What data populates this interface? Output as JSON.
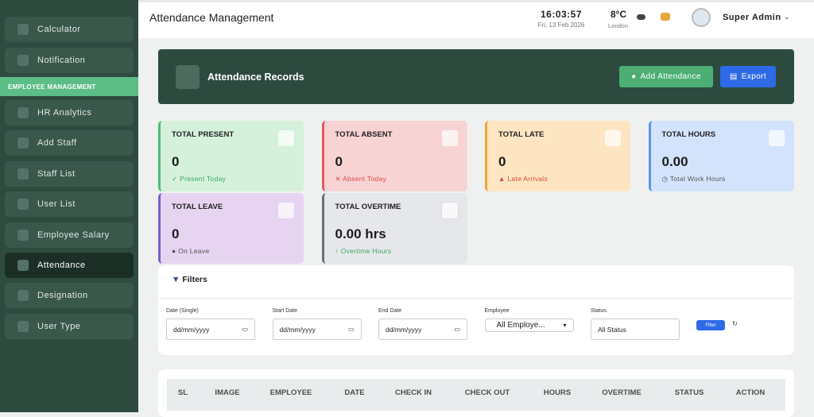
{
  "sidebar": {
    "items": [
      {
        "label": "Calculator"
      },
      {
        "label": "Notification"
      }
    ],
    "section": "EMPLOYEE MANAGEMENT",
    "section_items": [
      {
        "label": "HR Analytics"
      },
      {
        "label": "Add Staff"
      },
      {
        "label": "Staff List"
      },
      {
        "label": "User List"
      },
      {
        "label": "Employee Salary"
      },
      {
        "label": "Attendance",
        "active": true
      },
      {
        "label": "Designation"
      },
      {
        "label": "User Type"
      }
    ]
  },
  "header": {
    "title": "Attendance Management",
    "time": "16:03:57",
    "date": "Fri, 13 Feb 2026",
    "temperature": "8°C",
    "city": "London",
    "user": "Super Admin"
  },
  "panel": {
    "title": "Attendance Records",
    "buttons": [
      "Add Attendance",
      "Export"
    ]
  },
  "cards": [
    {
      "label": "TOTAL PRESENT",
      "value": "0",
      "note": "Present Today",
      "theme": "green"
    },
    {
      "label": "TOTAL ABSENT",
      "value": "0",
      "note": "Absent Today",
      "theme": "red"
    },
    {
      "label": "TOTAL LATE",
      "value": "0",
      "note": "Late Arrivals",
      "theme": "yellow"
    },
    {
      "label": "TOTAL HOURS",
      "value": "0.00",
      "note": "Total Work Hours",
      "theme": "blue"
    },
    {
      "label": "TOTAL LEAVE",
      "value": "0",
      "note": "On Leave",
      "theme": "purple"
    },
    {
      "label": "TOTAL OVERTIME",
      "value": "0.00 hrs",
      "note": "Overtime Hours",
      "theme": "gray"
    }
  ],
  "filters": {
    "title": "Filters",
    "fields": [
      {
        "label": "Date (Single)",
        "value": "dd/mm/yyyy",
        "kind": "date"
      },
      {
        "label": "Start Date",
        "value": "dd/mm/yyyy",
        "kind": "date"
      },
      {
        "label": "End Date",
        "value": "dd/mm/yyyy",
        "kind": "date"
      },
      {
        "label": "Employee",
        "value": "All Employe...",
        "kind": "select"
      },
      {
        "label": "Status",
        "value": "All Status",
        "kind": "text"
      }
    ],
    "button": "Filter"
  },
  "table": {
    "columns": [
      "SL",
      "IMAGE",
      "EMPLOYEE",
      "DATE",
      "CHECK IN",
      "CHECK OUT",
      "HOURS",
      "OVERTIME",
      "STATUS",
      "ACTION"
    ]
  }
}
